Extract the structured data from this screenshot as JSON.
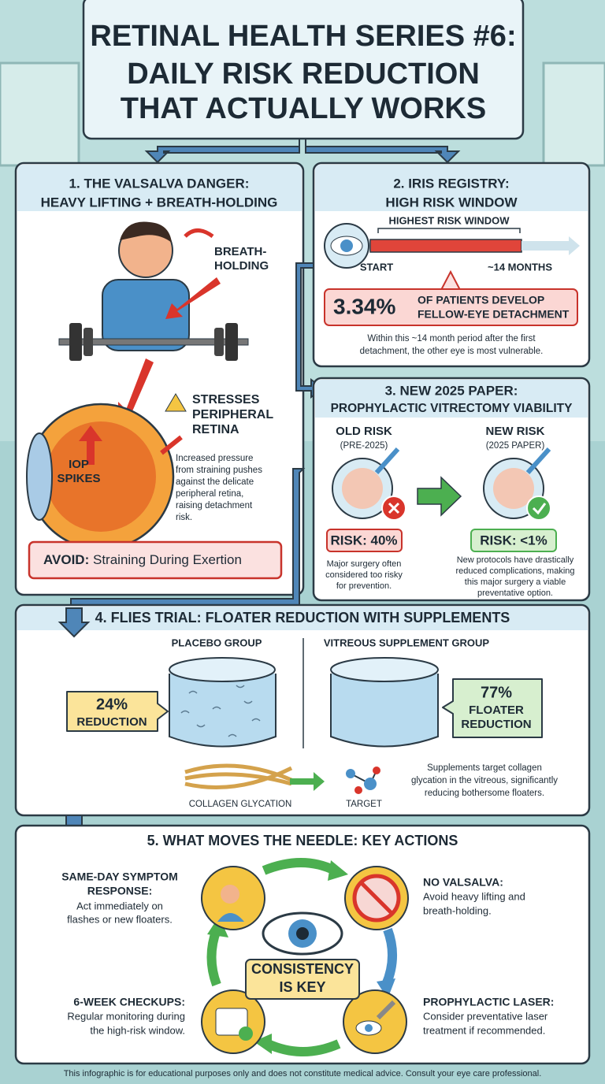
{
  "header": {
    "title_lines": [
      "RETINAL HEALTH SERIES #6:",
      "DAILY RISK REDUCTION",
      "THAT ACTUALLY WORKS"
    ]
  },
  "section1": {
    "title_lines": [
      "1. THE VALSALVA DANGER:",
      "HEAVY LIFTING + BREATH-HOLDING"
    ],
    "breath_lines": [
      "BREATH-",
      "HOLDING"
    ],
    "stress_lines": [
      "STRESSES",
      "PERIPHERAL",
      "RETINA"
    ],
    "iop_lines": [
      "IOP",
      "SPIKES"
    ],
    "description_lines": [
      "Increased pressure",
      "from straining pushes",
      "against the delicate",
      "peripheral retina,",
      "raising detachment",
      "risk."
    ],
    "avoid_label": "AVOID:",
    "avoid_text": "Straining During Exertion"
  },
  "section2": {
    "title_lines": [
      "2. IRIS REGISTRY:",
      "HIGH RISK WINDOW"
    ],
    "window_label": "HIGHEST RISK WINDOW",
    "start_label": "START",
    "end_label": "~14 MONTHS",
    "stat_value": "3.34%",
    "stat_lines": [
      "OF PATIENTS DEVELOP",
      "FELLOW-EYE DETACHMENT"
    ],
    "note_lines": [
      "Within this ~14 month period after the first",
      "detachment, the other eye is most vulnerable."
    ]
  },
  "section3": {
    "title_lines": [
      "3. NEW 2025 PAPER:",
      "PROPHYLACTIC VITRECTOMY VIABILITY"
    ],
    "old_label": "OLD RISK",
    "old_sub": "(PRE-2025)",
    "new_label": "NEW RISK",
    "new_sub": "(2025 PAPER)",
    "old_risk": "RISK: 40%",
    "new_risk": "RISK: <1%",
    "old_note_lines": [
      "Major surgery often",
      "considered too risky",
      "for prevention."
    ],
    "new_note_lines": [
      "New protocols have drastically",
      "reduced complications, making",
      "this major surgery a viable",
      "preventative option."
    ]
  },
  "section4": {
    "title": "4. FLIES TRIAL: FLOATER REDUCTION WITH SUPPLEMENTS",
    "placebo_label": "PLACEBO GROUP",
    "supplement_label": "VITREOUS SUPPLEMENT GROUP",
    "placebo_value": "24%",
    "placebo_lines": [
      "REDUCTION"
    ],
    "supplement_value": "77%",
    "supplement_lines": [
      "FLOATER",
      "REDUCTION"
    ],
    "collagen_label": "COLLAGEN GLYCATION",
    "target_label": "TARGET",
    "note_lines": [
      "Supplements target collagen",
      "glycation in the vitreous, significantly",
      "reducing bothersome floaters."
    ]
  },
  "section5": {
    "title": "5. WHAT MOVES THE NEEDLE: KEY ACTIONS",
    "center_lines": [
      "CONSISTENCY",
      "IS KEY"
    ],
    "actions": [
      {
        "title_lines": [
          "SAME-DAY SYMPTOM",
          "RESPONSE:"
        ],
        "text_lines": [
          "Act immediately on",
          "flashes or new floaters."
        ]
      },
      {
        "title_lines": [
          "NO VALSALVA:"
        ],
        "text_lines": [
          "Avoid heavy lifting and",
          "breath-holding."
        ]
      },
      {
        "title_lines": [
          "6-WEEK CHECKUPS:"
        ],
        "text_lines": [
          "Regular monitoring during",
          "the high-risk window."
        ]
      },
      {
        "title_lines": [
          "PROPHYLACTIC LASER:"
        ],
        "text_lines": [
          "Consider preventative laser",
          "treatment if recommended."
        ]
      }
    ]
  },
  "footer": "This infographic is for educational purposes only and does not constitute medical advice. Consult your eye care professional."
}
